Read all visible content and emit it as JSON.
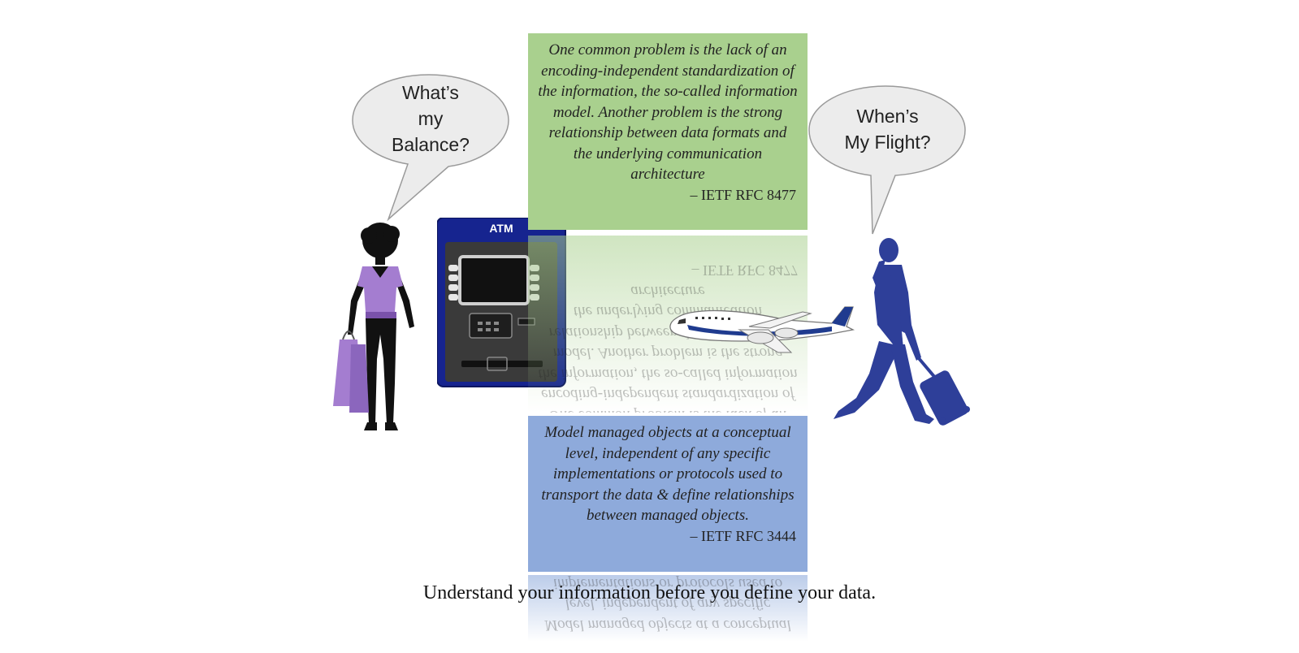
{
  "bubble_left": {
    "line1": "What’s",
    "line2": "my",
    "line3": "Balance?"
  },
  "bubble_right": {
    "line1": "When’s",
    "line2": "My Flight?"
  },
  "atm": {
    "label": "ATM"
  },
  "quote_top": {
    "text": "One common problem is the lack of an encoding-independent standardization of the information, the so-called information model. Another problem is the strong relationship between data formats and the underlying communication architecture",
    "citation": "– IETF RFC 8477"
  },
  "quote_bottom": {
    "text": "Model managed objects at a conceptual level, independent of any specific implementations or protocols used to transport the data & define relationships between managed objects.",
    "citation": "– IETF RFC 3444"
  },
  "caption": "Understand your information before you define your data.",
  "colors": {
    "green_box": "#a9d08e",
    "blue_box": "#8eaadb",
    "person_blue": "#2e3f99",
    "shirt_purple": "#a47dd0",
    "atm_blue": "#16248f"
  },
  "icons": [
    "woman-shopper-icon",
    "atm-icon",
    "airplane-icon",
    "traveler-icon",
    "speech-bubble-icon"
  ]
}
